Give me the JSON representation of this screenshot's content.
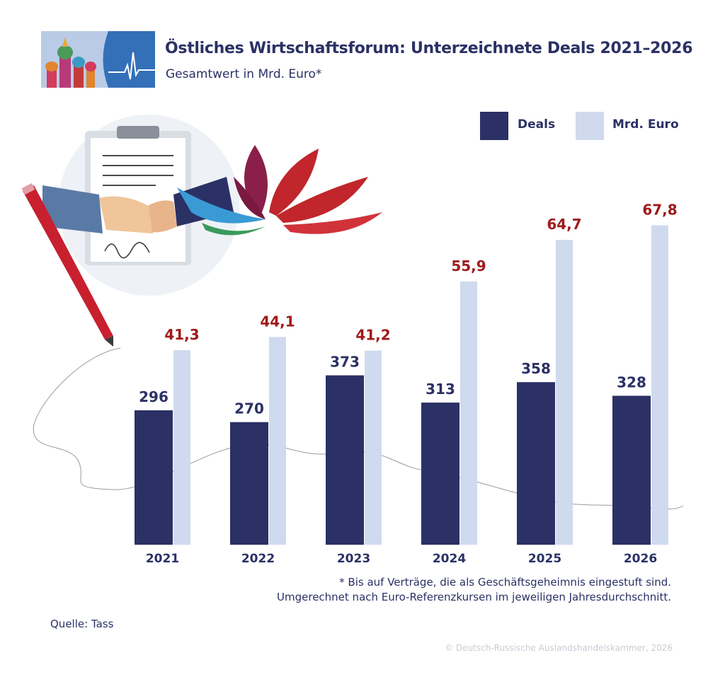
{
  "header": {
    "title": "Östliches Wirtschaftsforum: Unterzeichnete Deals 2021–2026",
    "subtitle": "Gesamtwert in Mrd. Euro*"
  },
  "legend": {
    "deals": "Deals",
    "value": "Mrd. Euro"
  },
  "colors": {
    "deals": "#2b3165",
    "value": "#cfdaee",
    "value_label": "#a01a1a",
    "text": "#2b3165"
  },
  "chart_data": {
    "type": "bar",
    "categories": [
      "2021",
      "2022",
      "2023",
      "2024",
      "2025",
      "2026"
    ],
    "series": [
      {
        "name": "Deals",
        "values": [
          296,
          270,
          373,
          313,
          358,
          328
        ],
        "labels": [
          "296",
          "270",
          "373",
          "313",
          "358",
          "328"
        ]
      },
      {
        "name": "Mrd. Euro",
        "values": [
          41.3,
          44.1,
          41.2,
          55.9,
          64.7,
          67.8
        ],
        "labels": [
          "41,3",
          "44,1",
          "41,2",
          "55,9",
          "64,7",
          "67,8"
        ]
      }
    ],
    "title": "Östliches Wirtschaftsforum: Unterzeichnete Deals 2021–2026",
    "subtitle": "Gesamtwert in Mrd. Euro*",
    "xlabel": "",
    "ylabel": "",
    "legend": "top-right",
    "grid": false
  },
  "footnote": {
    "line1": "* Bis auf Verträge, die als Geschäftsgeheimnis eingestuft sind.",
    "line2": "Umgerechnet nach Euro-Referenzkursen im jeweiligen Jahresdurchschnitt."
  },
  "source": "Quelle: Tass",
  "copyright": "© Deutsch-Russische Auslandshandelskammer, 2026"
}
